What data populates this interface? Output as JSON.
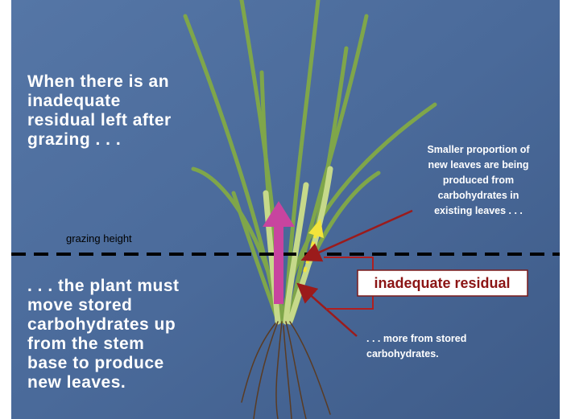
{
  "slide": {
    "intro": [
      "When there is an",
      "inadequate",
      "residual left after",
      "grazing . . ."
    ],
    "grazing_height": "grazing height",
    "conclusion": [
      ". . . the plant must",
      "move stored",
      "carbohydrates up",
      "from the stem",
      "base to produce",
      "new leaves."
    ],
    "existing_leaves_note": [
      "Smaller proportion of",
      "new leaves are being",
      "produced from",
      "carbohydrates in",
      "existing leaves . . ."
    ],
    "residual_label": "inadequate residual",
    "stored_note": [
      ". . . more from stored",
      "carbohydrates."
    ]
  }
}
